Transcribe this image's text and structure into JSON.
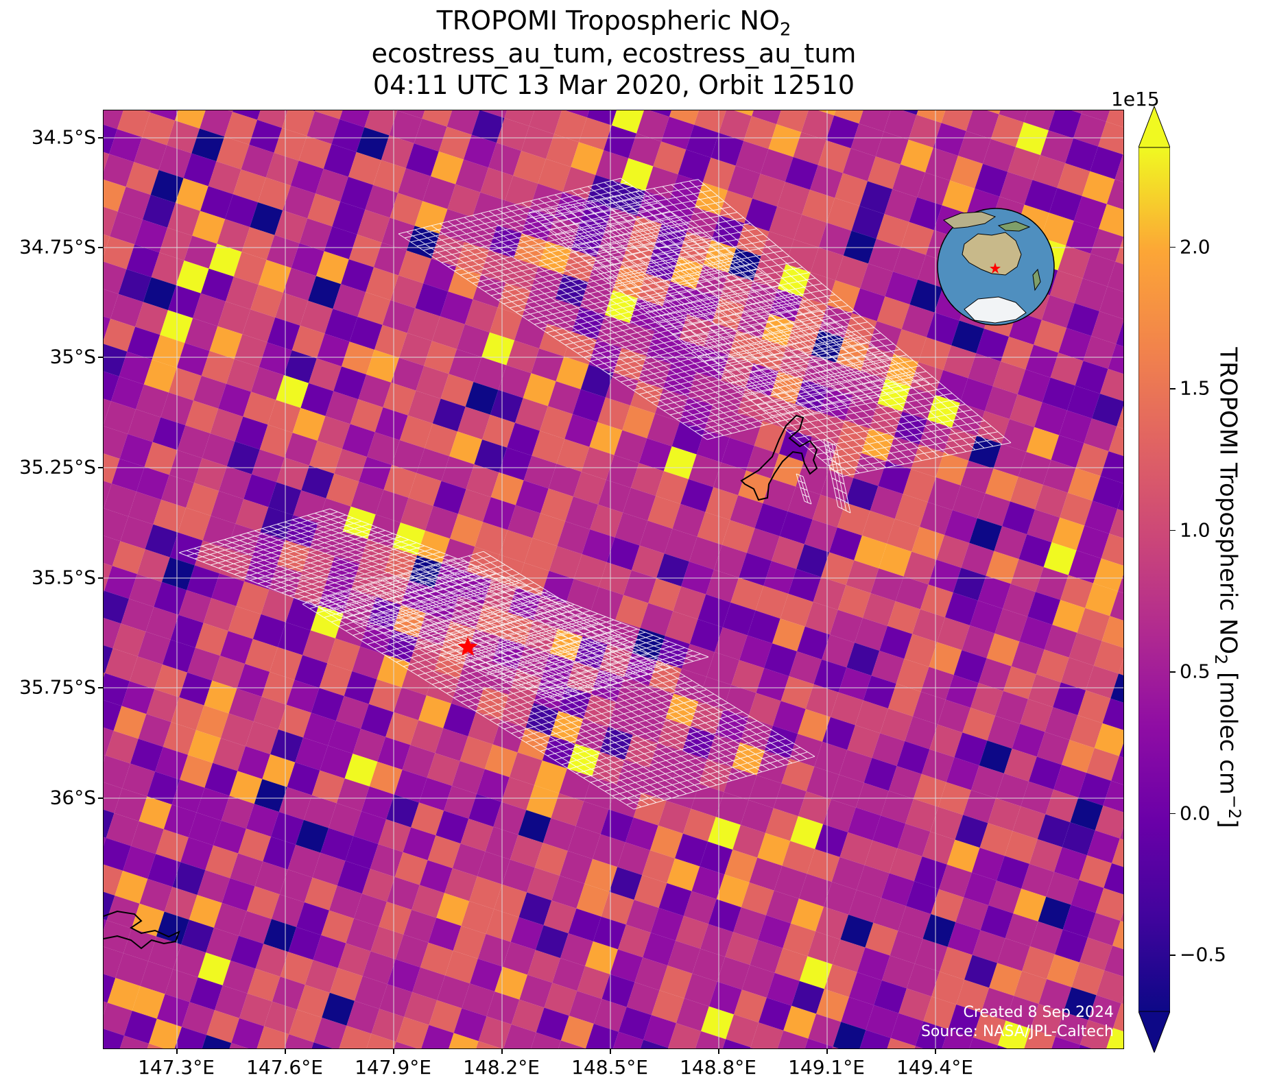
{
  "title": {
    "line1": "TROPOMI Tropospheric NO",
    "line1_sub": "2",
    "line2": "ecostress_au_tum, ecostress_au_tum",
    "line3": "04:11 UTC 13 Mar 2020, Orbit 12510"
  },
  "map": {
    "lon_ticks": [
      "147.3°E",
      "147.6°E",
      "147.9°E",
      "148.2°E",
      "148.5°E",
      "148.8°E",
      "149.1°E",
      "149.4°E"
    ],
    "lat_ticks": [
      "34.5°S",
      "34.75°S",
      "35°S",
      "35.25°S",
      "35.5°S",
      "35.75°S",
      "36°S"
    ],
    "credit_line1": "Created 8 Sep 2024",
    "credit_line2": "Source: NASA/JPL-Caltech",
    "colormap": "plasma",
    "site_marker": "red-star",
    "inset": "globe-australia"
  },
  "colorbar": {
    "exponent": "1e15",
    "ticks": [
      "−0.5",
      "0.0",
      "0.5",
      "1.0",
      "1.5",
      "2.0"
    ],
    "tick_values": [
      -0.5,
      0.0,
      0.5,
      1.0,
      1.5,
      2.0
    ],
    "range": [
      -0.7,
      2.35
    ],
    "label_main": "TROPOMI Tropospheric NO",
    "label_sub": "2",
    "label_unit_pre": " [molec cm",
    "label_unit_sup": "−2",
    "label_unit_post": "]"
  }
}
